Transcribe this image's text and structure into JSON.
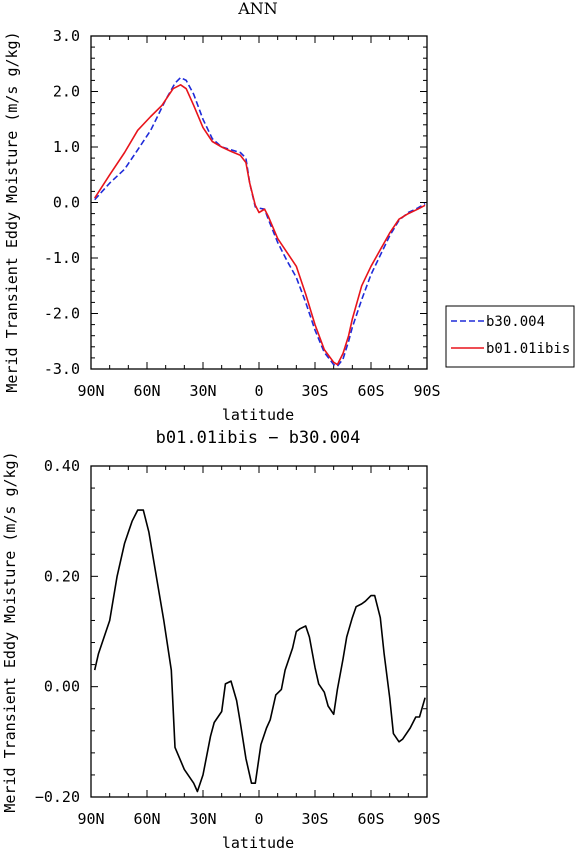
{
  "chart_data": [
    {
      "type": "line",
      "title": "ANN",
      "xlabel": "latitude",
      "ylabel": "Merid Transient Eddy Moisture (m/s g/kg)",
      "x_tick_labels": [
        "90N",
        "60N",
        "30N",
        "0",
        "30S",
        "60S",
        "90S"
      ],
      "x_ticks": [
        90,
        60,
        30,
        0,
        -30,
        -60,
        -90
      ],
      "y_tick_labels": [
        "3.0",
        "2.0",
        "1.0",
        "0.0",
        "-1.0",
        "-2.0",
        "-3.0"
      ],
      "y_ticks": [
        3,
        2,
        1,
        0,
        -1,
        -2,
        -3
      ],
      "xlim": [
        90,
        -90
      ],
      "ylim": [
        -3,
        3
      ],
      "legend_position": "right",
      "series": [
        {
          "name": "b30.004",
          "color": "#1f2bd9",
          "dash": true,
          "x": [
            88,
            80,
            72,
            65,
            58,
            50,
            45,
            42,
            39,
            35,
            30,
            25,
            20,
            15,
            10,
            7,
            5,
            2,
            0,
            -3,
            -5,
            -10,
            -15,
            -20,
            -25,
            -30,
            -35,
            -40,
            -42,
            -45,
            -48,
            -50,
            -55,
            -60,
            -65,
            -70,
            -75,
            -80,
            -85,
            -89
          ],
          "y": [
            0.05,
            0.35,
            0.6,
            0.95,
            1.3,
            1.85,
            2.15,
            2.25,
            2.2,
            1.95,
            1.5,
            1.15,
            1.0,
            0.95,
            0.9,
            0.8,
            0.35,
            -0.08,
            -0.1,
            -0.12,
            -0.3,
            -0.72,
            -1.05,
            -1.35,
            -1.8,
            -2.3,
            -2.7,
            -2.92,
            -2.95,
            -2.82,
            -2.5,
            -2.25,
            -1.75,
            -1.3,
            -0.95,
            -0.6,
            -0.32,
            -0.18,
            -0.1,
            -0.02
          ]
        },
        {
          "name": "b01.01ibis",
          "color": "#e8141b",
          "dash": false,
          "x": [
            88,
            80,
            72,
            65,
            58,
            52,
            46,
            42,
            39,
            35,
            30,
            25,
            20,
            15,
            10,
            7,
            5,
            2,
            0,
            -3,
            -5,
            -10,
            -15,
            -20,
            -25,
            -30,
            -35,
            -40,
            -42,
            -45,
            -48,
            -50,
            -55,
            -60,
            -65,
            -70,
            -75,
            -80,
            -85,
            -89
          ],
          "y": [
            0.08,
            0.5,
            0.9,
            1.3,
            1.55,
            1.75,
            2.05,
            2.12,
            2.05,
            1.75,
            1.35,
            1.1,
            1.0,
            0.92,
            0.85,
            0.72,
            0.35,
            -0.05,
            -0.18,
            -0.12,
            -0.25,
            -0.65,
            -0.9,
            -1.15,
            -1.65,
            -2.2,
            -2.65,
            -2.88,
            -2.92,
            -2.72,
            -2.4,
            -2.1,
            -1.5,
            -1.15,
            -0.85,
            -0.55,
            -0.3,
            -0.2,
            -0.12,
            -0.05
          ]
        }
      ]
    },
    {
      "type": "line",
      "title": "b01.01ibis − b30.004",
      "xlabel": "latitude",
      "ylabel": "Merid Transient Eddy Moisture (m/s g/kg)",
      "x_tick_labels": [
        "90N",
        "60N",
        "30N",
        "0",
        "30S",
        "60S",
        "90S"
      ],
      "x_ticks": [
        90,
        60,
        30,
        0,
        -30,
        -60,
        -90
      ],
      "y_tick_labels": [
        "0.40",
        "0.20",
        "0.00",
        "−0.20"
      ],
      "y_ticks": [
        0.4,
        0.2,
        0.0,
        -0.2
      ],
      "xlim": [
        90,
        -90
      ],
      "ylim": [
        -0.2,
        0.4
      ],
      "series": [
        {
          "color": "#000000",
          "x": [
            88,
            86,
            80,
            76,
            72,
            68,
            65,
            62,
            59,
            55,
            51,
            47,
            45,
            40,
            35,
            33,
            30,
            26,
            24,
            20,
            18,
            15,
            12,
            10,
            7,
            4,
            2,
            -1,
            -4,
            -6,
            -9,
            -12,
            -14,
            -18,
            -20,
            -22,
            -25,
            -27,
            -30,
            -32,
            -35,
            -37,
            -40,
            -42,
            -45,
            -47,
            -50,
            -52,
            -55,
            -57,
            -60,
            -62,
            -65,
            -67,
            -70,
            -72,
            -75,
            -77,
            -81,
            -84,
            -86,
            -89
          ],
          "y": [
            0.03,
            0.06,
            0.12,
            0.2,
            0.26,
            0.3,
            0.32,
            0.32,
            0.28,
            0.2,
            0.12,
            0.03,
            -0.11,
            -0.15,
            -0.175,
            -0.19,
            -0.16,
            -0.09,
            -0.065,
            -0.045,
            0.005,
            0.01,
            -0.025,
            -0.065,
            -0.13,
            -0.175,
            -0.175,
            -0.105,
            -0.075,
            -0.06,
            -0.015,
            -0.005,
            0.03,
            0.07,
            0.1,
            0.105,
            0.11,
            0.09,
            0.035,
            0.005,
            -0.01,
            -0.035,
            -0.05,
            -0.005,
            0.05,
            0.09,
            0.125,
            0.145,
            0.15,
            0.155,
            0.165,
            0.165,
            0.125,
            0.06,
            -0.02,
            -0.085,
            -0.1,
            -0.095,
            -0.075,
            -0.055,
            -0.055,
            -0.02
          ]
        }
      ]
    }
  ]
}
